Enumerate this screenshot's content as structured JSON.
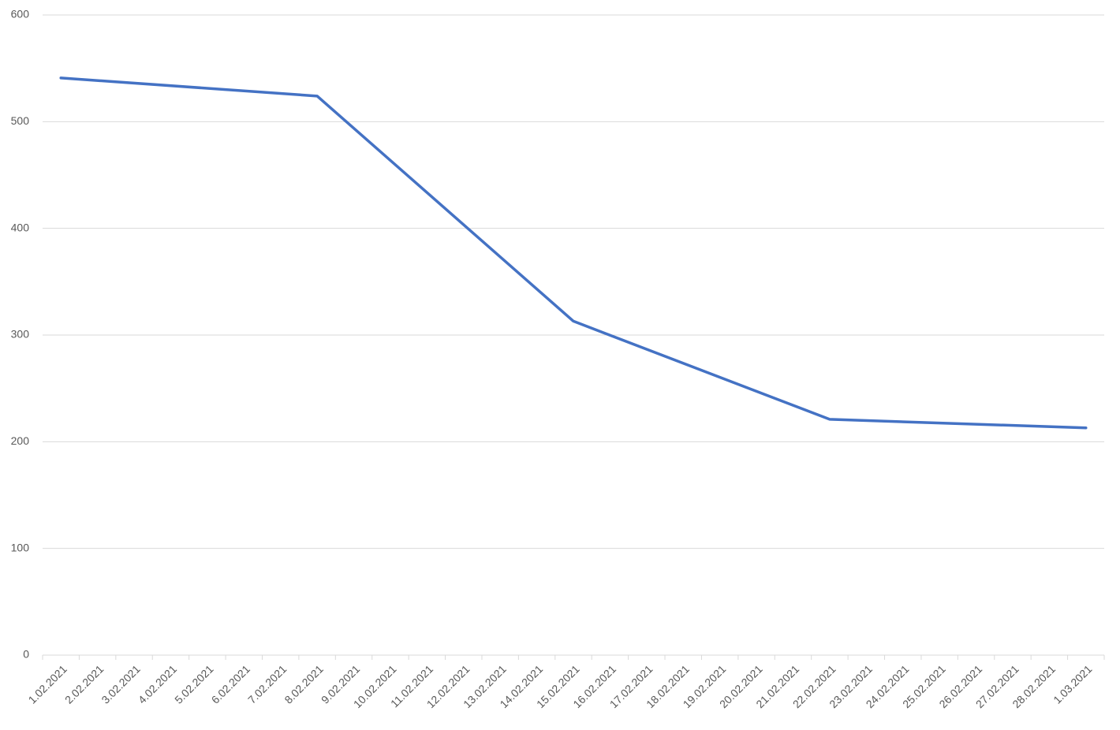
{
  "chart_data": {
    "type": "line",
    "categories": [
      "1.02.2021",
      "2.02.2021",
      "3.02.2021",
      "4.02.2021",
      "5.02.2021",
      "6.02.2021",
      "7.02.2021",
      "8.02.2021",
      "9.02.2021",
      "10.02.2021",
      "11.02.2021",
      "12.02.2021",
      "13.02.2021",
      "14.02.2021",
      "15.02.2021",
      "16.02.2021",
      "17.02.2021",
      "18.02.2021",
      "19.02.2021",
      "20.02.2021",
      "21.02.2021",
      "22.02.2021",
      "23.02.2021",
      "24.02.2021",
      "25.02.2021",
      "26.02.2021",
      "27.02.2021",
      "28.02.2021",
      "1.03.2021"
    ],
    "series": [
      {
        "color": "#4472c4",
        "x": [
          "1.02.2021",
          "8.02.2021",
          "15.02.2021",
          "22.02.2021",
          "1.03.2021"
        ],
        "values": [
          541,
          524,
          313,
          221,
          213
        ]
      }
    ],
    "ylim": [
      0,
      600
    ],
    "yticks": [
      0,
      100,
      200,
      300,
      400,
      500,
      600
    ],
    "grid": true
  }
}
